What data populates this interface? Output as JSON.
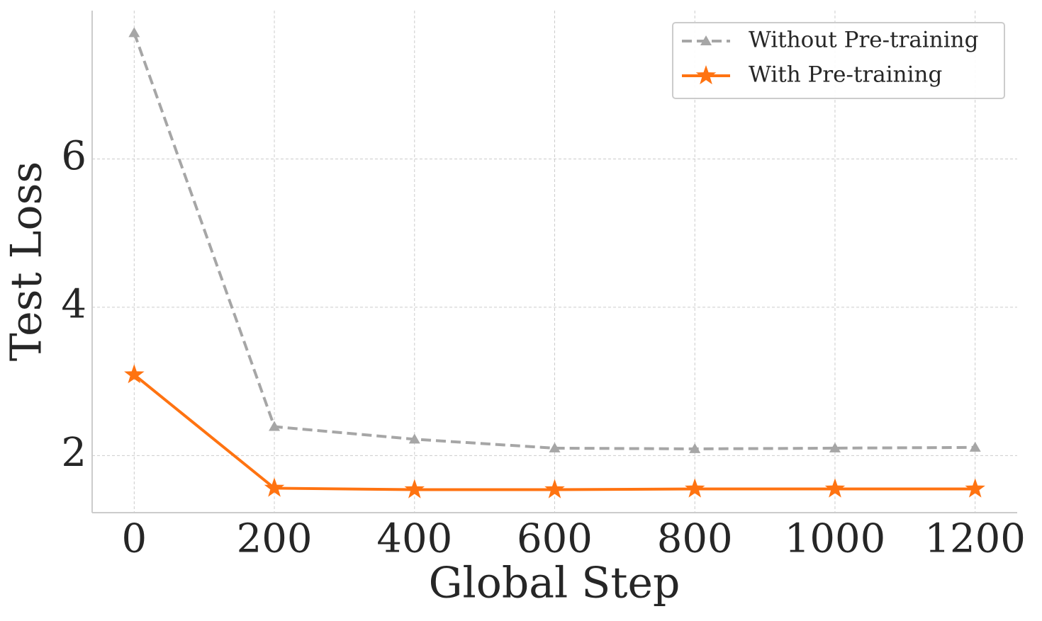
{
  "chart_data": {
    "type": "line",
    "x_label": "Global Step",
    "y_label": "Test Loss",
    "x": [
      0,
      200,
      400,
      600,
      800,
      1000,
      1200
    ],
    "series": [
      {
        "name": "Without Pre-training",
        "color": "#a6a6a6",
        "linestyle": "dashed",
        "marker": "triangle",
        "values": [
          7.7,
          2.39,
          2.22,
          2.1,
          2.09,
          2.1,
          2.11
        ]
      },
      {
        "name": "With Pre-training",
        "color": "#ff7311",
        "linestyle": "solid",
        "marker": "star",
        "values": [
          3.09,
          1.56,
          1.54,
          1.54,
          1.55,
          1.55,
          1.55
        ]
      }
    ],
    "xlim": [
      -60,
      1260
    ],
    "ylim": [
      1.23,
      8.0
    ],
    "xticks": [
      0,
      200,
      400,
      600,
      800,
      1000,
      1200
    ],
    "yticks": [
      2,
      4,
      6
    ],
    "grid": true,
    "legend": "upper right"
  }
}
